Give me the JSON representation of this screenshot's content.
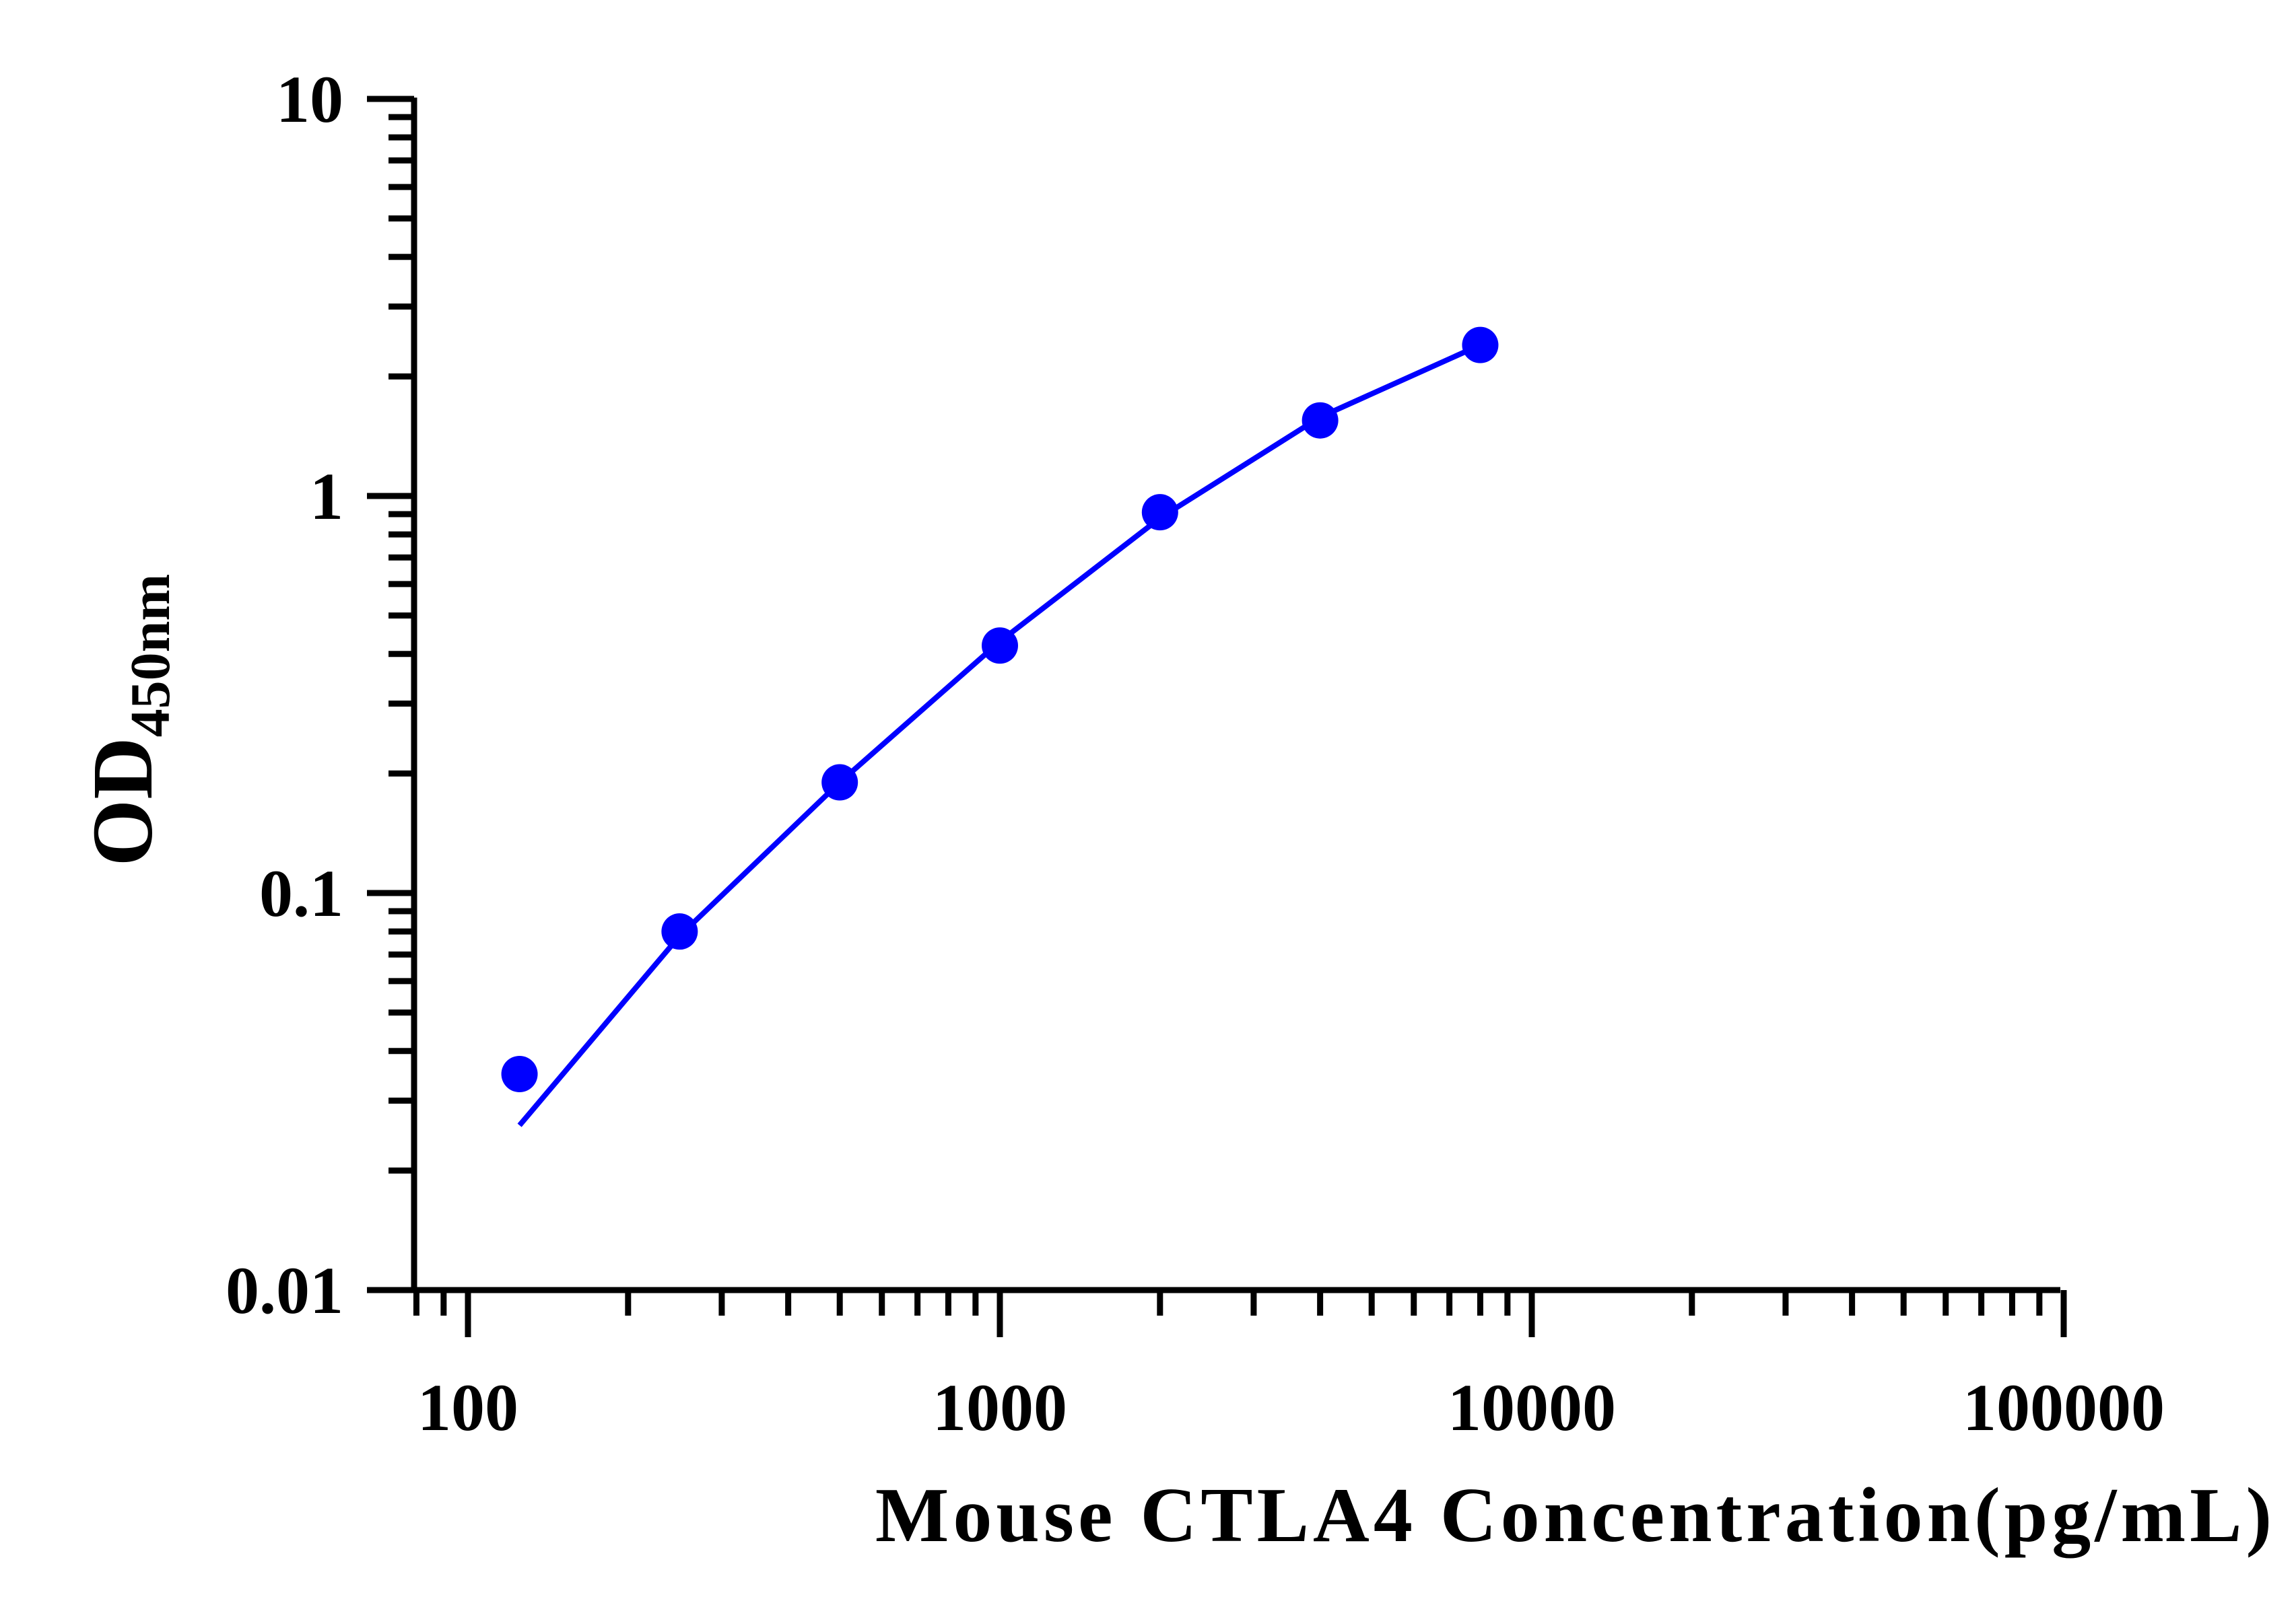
{
  "chart_data": {
    "type": "scatter",
    "xlabel": "Mouse CTLA4 Concentration(pg/mL)",
    "ylabel_main": "OD",
    "ylabel_sub": "450nm",
    "x_scale": "log",
    "y_scale": "log",
    "xlim": [
      80,
      100000
    ],
    "ylim": [
      0.01,
      10
    ],
    "x_ticks": [
      100,
      1000,
      10000,
      100000
    ],
    "x_tick_labels": [
      "100",
      "1000",
      "10000",
      "100000"
    ],
    "y_ticks": [
      0.01,
      0.1,
      1,
      10
    ],
    "y_tick_labels": [
      "0.01",
      "0.1",
      "1",
      "10"
    ],
    "grid": false,
    "legend": "none",
    "series": [
      {
        "color": "#0000ff",
        "points": [
          {
            "x": 125,
            "y": 0.035
          },
          {
            "x": 250,
            "y": 0.08
          },
          {
            "x": 500,
            "y": 0.19
          },
          {
            "x": 1000,
            "y": 0.42
          },
          {
            "x": 2000,
            "y": 0.91
          },
          {
            "x": 4000,
            "y": 1.55
          },
          {
            "x": 8000,
            "y": 2.4
          }
        ],
        "fit_curve": [
          {
            "x": 125,
            "y": 0.026
          },
          {
            "x": 250,
            "y": 0.078
          },
          {
            "x": 500,
            "y": 0.19
          },
          {
            "x": 1000,
            "y": 0.43
          },
          {
            "x": 2000,
            "y": 0.88
          },
          {
            "x": 4000,
            "y": 1.58
          },
          {
            "x": 8000,
            "y": 2.4
          }
        ]
      }
    ]
  }
}
